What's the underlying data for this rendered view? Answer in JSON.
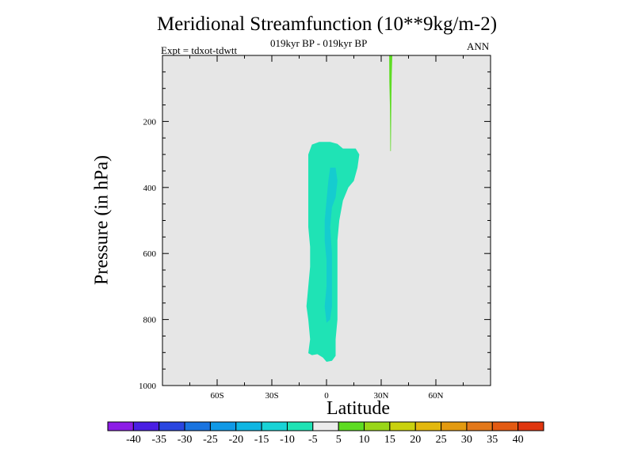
{
  "chart_data": {
    "type": "contour",
    "title": "Meridional Streamfunction (10**9kg/m-2)",
    "subtitle": "019kyr BP - 019kyr BP",
    "experiment_label": "Expt = tdxot-tdwtt",
    "season": "ANN",
    "xlabel": "Latitude",
    "ylabel": "Pressure (in hPa)",
    "xlim": [
      -90,
      90
    ],
    "ylim": [
      1000,
      0
    ],
    "x_ticks": [
      {
        "value": -60,
        "label": "60S"
      },
      {
        "value": -30,
        "label": "30S"
      },
      {
        "value": 0,
        "label": "0"
      },
      {
        "value": 30,
        "label": "30N"
      },
      {
        "value": 60,
        "label": "60N"
      }
    ],
    "y_ticks": [
      {
        "value": 200,
        "label": "200"
      },
      {
        "value": 400,
        "label": "400"
      },
      {
        "value": 600,
        "label": "600"
      },
      {
        "value": 800,
        "label": "800"
      },
      {
        "value": 1000,
        "label": "1000"
      }
    ],
    "background_color": "#e6e6e6",
    "colorbar": {
      "levels": [
        -40,
        -35,
        -30,
        -25,
        -20,
        -15,
        -10,
        -5,
        5,
        10,
        15,
        20,
        25,
        30,
        35,
        40
      ],
      "level_labels": [
        "-40",
        "-35",
        "-30",
        "-25",
        "-20",
        "-15",
        "-10",
        "-5",
        "5",
        "10",
        "15",
        "20",
        "25",
        "30",
        "35",
        "40"
      ],
      "colors": [
        "#8c1ce6",
        "#4a1fe3",
        "#2a46e0",
        "#1a74e0",
        "#1099e6",
        "#0fb6e3",
        "#18d3d6",
        "#1fe3b5",
        "#ececec",
        "#5ddc22",
        "#99d618",
        "#c9d10e",
        "#e3b80e",
        "#e39a10",
        "#e3781a",
        "#e35a12",
        "#e0360f"
      ]
    },
    "regions": [
      {
        "name": "equatorial-negative-cell",
        "level": "-10 to -5",
        "color": "#1fe3b5",
        "outline": [
          [
            -8,
            270
          ],
          [
            -4,
            262
          ],
          [
            2,
            262
          ],
          [
            6,
            268
          ],
          [
            9,
            282
          ],
          [
            16,
            282
          ],
          [
            18,
            300
          ],
          [
            17,
            340
          ],
          [
            15,
            380
          ],
          [
            12,
            400
          ],
          [
            9,
            440
          ],
          [
            7,
            500
          ],
          [
            6,
            560
          ],
          [
            6,
            640
          ],
          [
            6,
            720
          ],
          [
            6,
            800
          ],
          [
            5,
            860
          ],
          [
            5,
            910
          ],
          [
            3,
            925
          ],
          [
            0,
            928
          ],
          [
            -2,
            915
          ],
          [
            -5,
            905
          ],
          [
            -8,
            908
          ],
          [
            -10,
            902
          ],
          [
            -9,
            860
          ],
          [
            -10,
            800
          ],
          [
            -11,
            760
          ],
          [
            -10,
            700
          ],
          [
            -9,
            640
          ],
          [
            -9,
            580
          ],
          [
            -10,
            520
          ],
          [
            -10,
            460
          ],
          [
            -10,
            400
          ],
          [
            -10,
            340
          ],
          [
            -10,
            300
          ]
        ]
      },
      {
        "name": "equatorial-core",
        "level": "-15 to -10",
        "color": "#15cccf",
        "outline": [
          [
            2,
            340
          ],
          [
            5,
            340
          ],
          [
            6,
            380
          ],
          [
            5,
            430
          ],
          [
            3,
            460
          ],
          [
            2,
            520
          ],
          [
            3,
            600
          ],
          [
            3,
            680
          ],
          [
            3,
            760
          ],
          [
            2,
            800
          ],
          [
            0,
            810
          ],
          [
            -1,
            760
          ],
          [
            0,
            700
          ],
          [
            0,
            620
          ],
          [
            -1,
            560
          ],
          [
            -1,
            500
          ],
          [
            0,
            440
          ],
          [
            1,
            380
          ]
        ]
      },
      {
        "name": "midlatitude-positive-streak",
        "level": "5 to 10",
        "color": "#5ddc22",
        "outline": [
          [
            34.4,
            0
          ],
          [
            36.1,
            0
          ],
          [
            35.8,
            60
          ],
          [
            35.6,
            120
          ],
          [
            35.5,
            180
          ],
          [
            35.4,
            240
          ],
          [
            35.3,
            290
          ],
          [
            35.0,
            290
          ],
          [
            34.9,
            220
          ],
          [
            34.8,
            150
          ],
          [
            34.5,
            80
          ]
        ]
      }
    ]
  }
}
